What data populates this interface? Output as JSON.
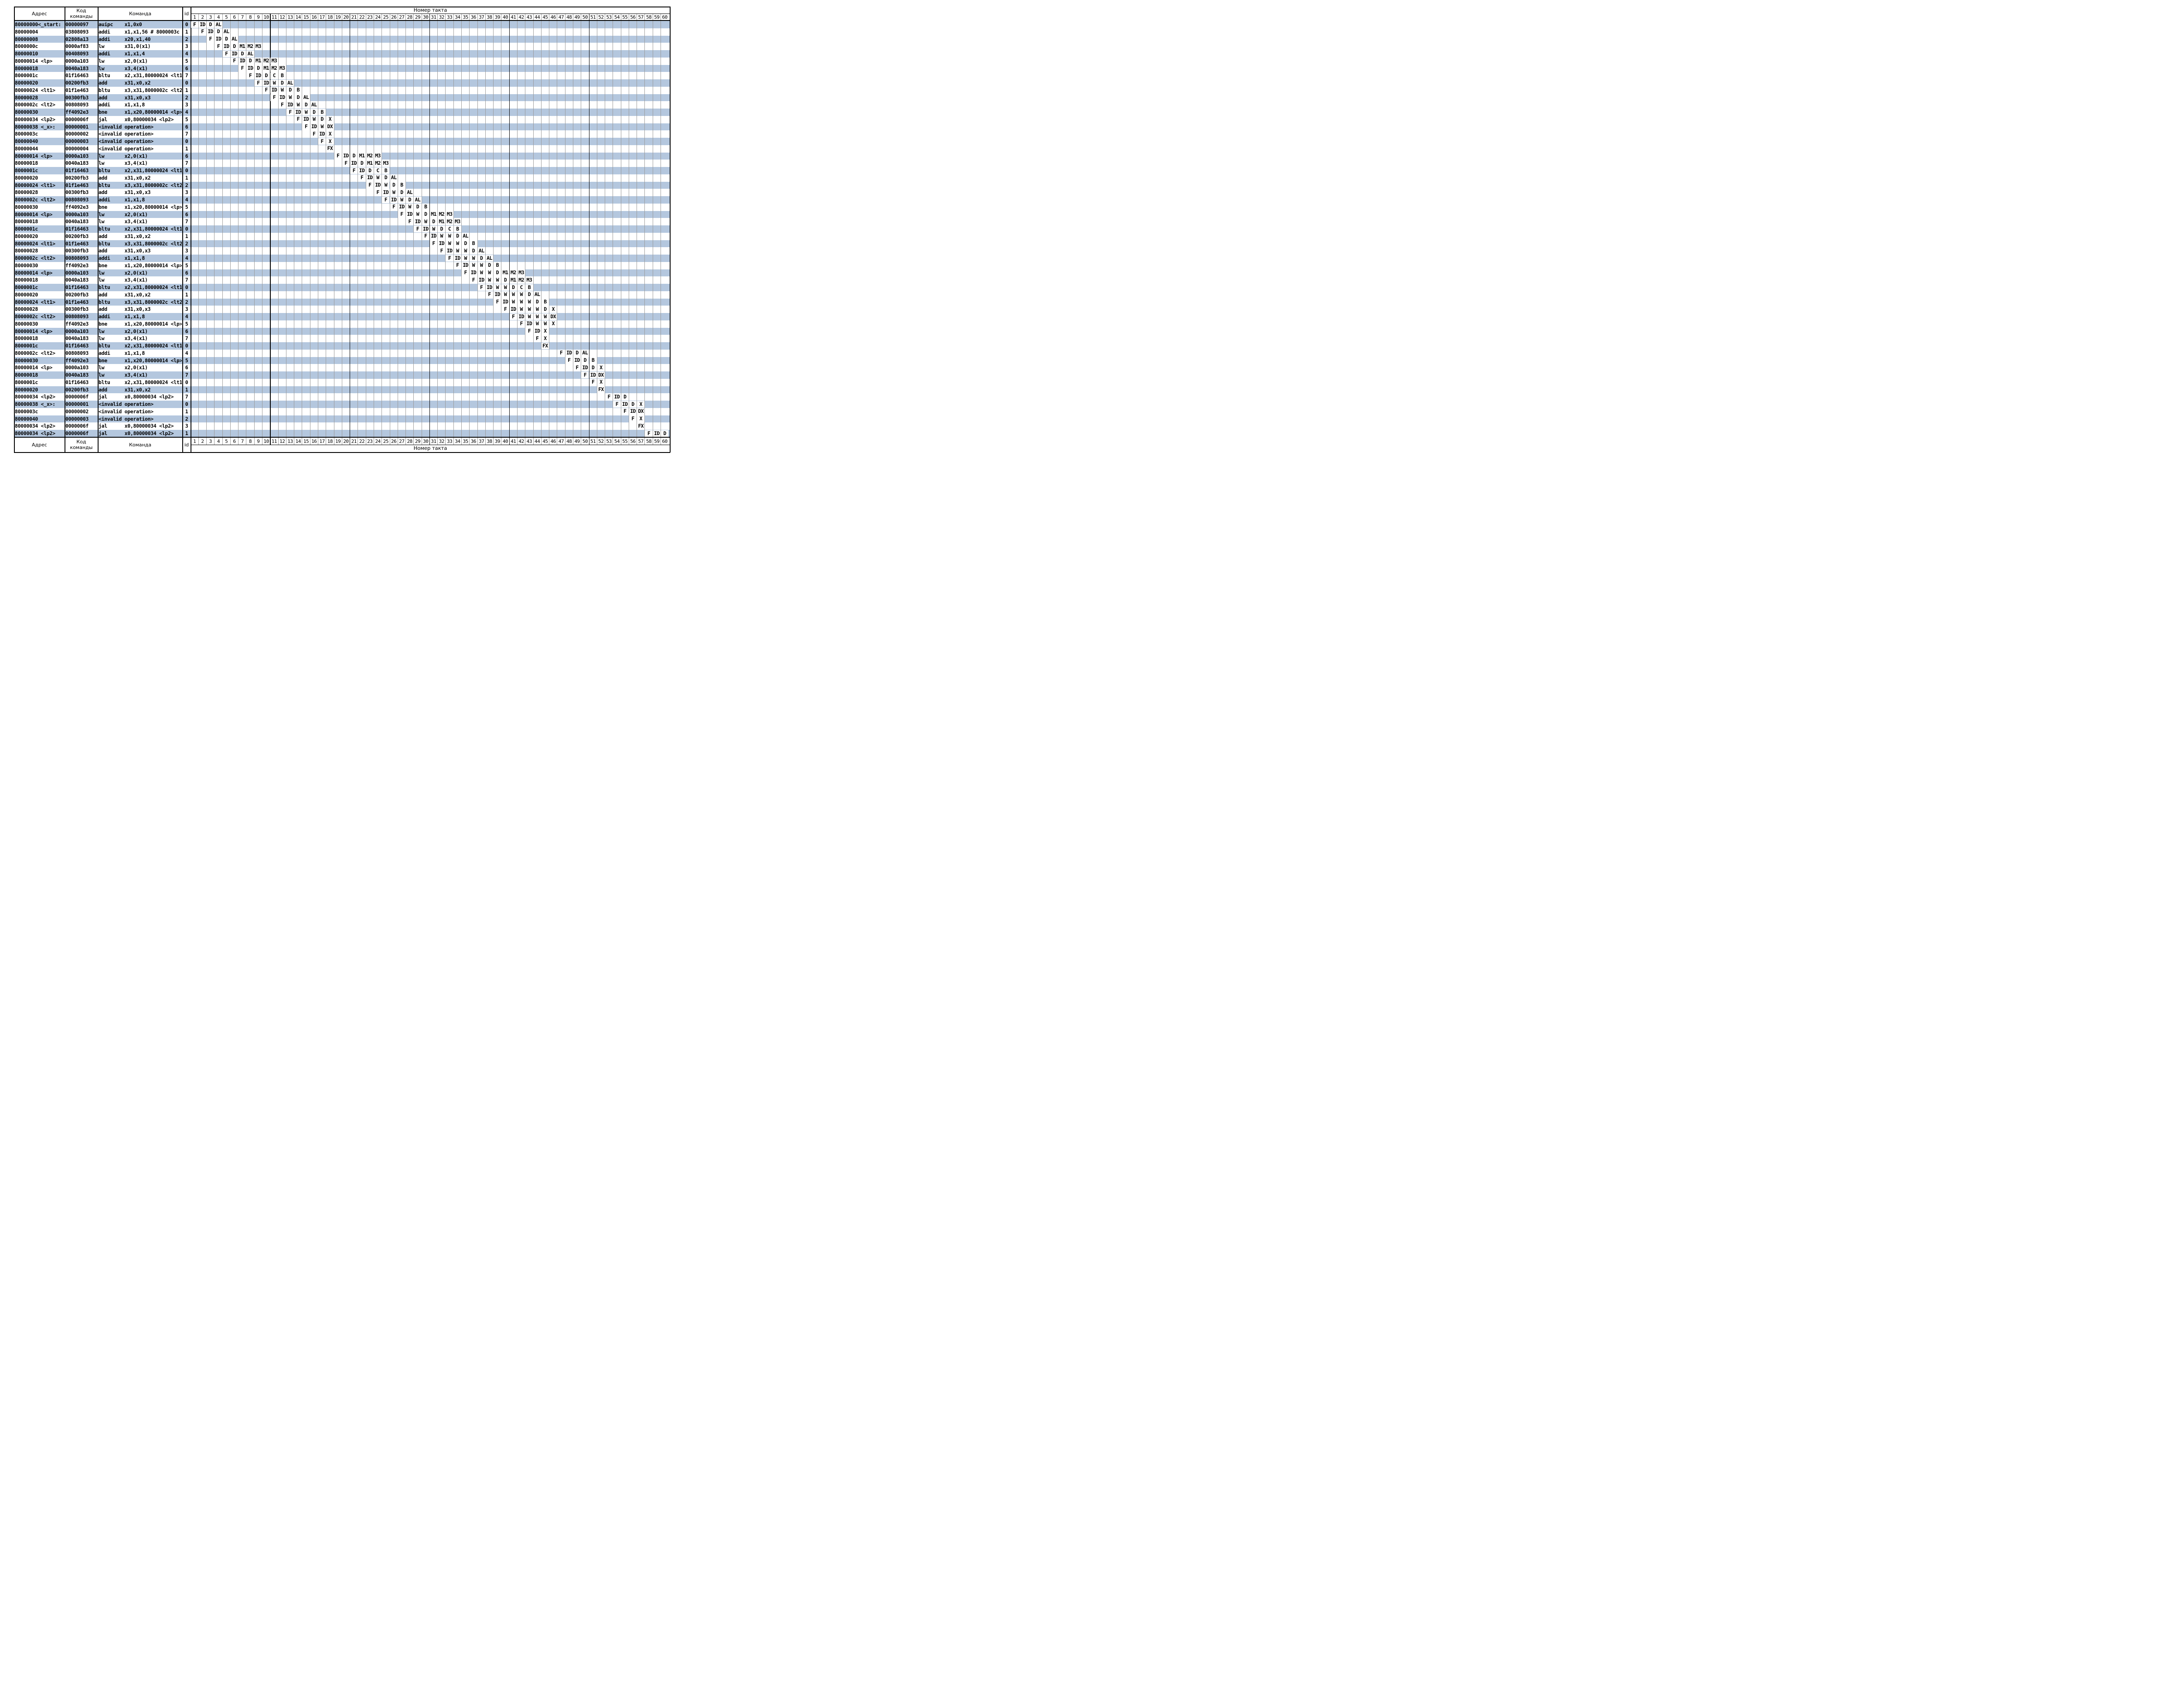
{
  "header": {
    "address": "Адрес",
    "code": "Код команды",
    "command": "Команда",
    "id": "id",
    "clock_title": "Номер такта",
    "clock_count": 60
  },
  "footer": {
    "address": "Адрес",
    "code": "Код команды",
    "command": "Команда",
    "id": "id",
    "clock_title": "Номер такта"
  },
  "colors": {
    "band": "#b4c7de",
    "grid": "#9a9a9a",
    "border": "#000000"
  },
  "rows": [
    {
      "addr": "80000000<_start:",
      "code": "00000097",
      "cmd": "auipc    x1,0x0",
      "id": "0",
      "start": 1,
      "stages": [
        "F",
        "ID",
        "D",
        "AL"
      ]
    },
    {
      "addr": "80000004",
      "code": "03808093",
      "cmd": "addi     x1,x1,56 # 8000003c",
      "id": "1",
      "start": 2,
      "stages": [
        "F",
        "ID",
        "D",
        "AL"
      ]
    },
    {
      "addr": "80000008",
      "code": "02808a13",
      "cmd": "addi     x20,x1,40",
      "id": "2",
      "start": 3,
      "stages": [
        "F",
        "ID",
        "D",
        "AL"
      ]
    },
    {
      "addr": "8000000c",
      "code": "0000af83",
      "cmd": "lw       x31,0(x1)",
      "id": "3",
      "start": 4,
      "stages": [
        "F",
        "ID",
        "D",
        "M1",
        "M2",
        "M3"
      ]
    },
    {
      "addr": "80000010",
      "code": "00408093",
      "cmd": "addi     x1,x1,4",
      "id": "4",
      "start": 5,
      "stages": [
        "F",
        "ID",
        "D",
        "AL"
      ]
    },
    {
      "addr": "80000014 <lp>",
      "code": "0000a103",
      "cmd": "lw       x2,0(x1)",
      "id": "5",
      "start": 6,
      "stages": [
        "F",
        "ID",
        "D",
        "M1",
        "M2",
        "M3"
      ]
    },
    {
      "addr": "80000018",
      "code": "0040a183",
      "cmd": "lw       x3,4(x1)",
      "id": "6",
      "start": 7,
      "stages": [
        "F",
        "ID",
        "D",
        "M1",
        "M2",
        "M3"
      ]
    },
    {
      "addr": "8000001c",
      "code": "01f16463",
      "cmd": "bltu     x2,x31,80000024 <lt1>",
      "id": "7",
      "start": 8,
      "stages": [
        "F",
        "ID",
        "D",
        "C",
        "B"
      ]
    },
    {
      "addr": "80000020",
      "code": "00200fb3",
      "cmd": "add      x31,x0,x2",
      "id": "0",
      "start": 9,
      "stages": [
        "F",
        "ID",
        "W",
        "D",
        "AL"
      ]
    },
    {
      "addr": "80000024 <lt1>",
      "code": "01f1e463",
      "cmd": "bltu     x3,x31,8000002c <lt2>",
      "id": "1",
      "start": 10,
      "stages": [
        "F",
        "ID",
        "W",
        "D",
        "B"
      ]
    },
    {
      "addr": "80000028",
      "code": "00300fb3",
      "cmd": "add      x31,x0,x3",
      "id": "2",
      "start": 11,
      "stages": [
        "F",
        "ID",
        "W",
        "D",
        "AL"
      ]
    },
    {
      "addr": "8000002c <lt2>",
      "code": "00808093",
      "cmd": "addi     x1,x1,8",
      "id": "3",
      "start": 12,
      "stages": [
        "F",
        "ID",
        "W",
        "D",
        "AL"
      ]
    },
    {
      "addr": "80000030",
      "code": "ff4092e3",
      "cmd": "bne      x1,x20,80000014 <lp>",
      "id": "4",
      "start": 13,
      "stages": [
        "F",
        "ID",
        "W",
        "D",
        "B"
      ]
    },
    {
      "addr": "80000034 <lp2>",
      "code": "0000006f",
      "cmd": "jal      x0,80000034 <lp2>",
      "id": "5",
      "start": 14,
      "stages": [
        "F",
        "ID",
        "W",
        "D",
        "X"
      ]
    },
    {
      "addr": "80000038 <_x>:",
      "code": "00000001",
      "cmd": "<invalid operation>",
      "id": "6",
      "start": 15,
      "stages": [
        "F",
        "ID",
        "W",
        "DX"
      ]
    },
    {
      "addr": "8000003c",
      "code": "00000002",
      "cmd": "<invalid operation>",
      "id": "7",
      "start": 16,
      "stages": [
        "F",
        "ID",
        "X"
      ]
    },
    {
      "addr": "80000040",
      "code": "00000003",
      "cmd": "<invalid operation>",
      "id": "0",
      "start": 17,
      "stages": [
        "F",
        "X"
      ]
    },
    {
      "addr": "80000044",
      "code": "00000004",
      "cmd": "<invalid operation>",
      "id": "1",
      "start": 18,
      "stages": [
        "FX"
      ]
    },
    {
      "addr": "80000014 <lp>",
      "code": "0000a103",
      "cmd": "lw       x2,0(x1)",
      "id": "6",
      "start": 19,
      "stages": [
        "F",
        "ID",
        "D",
        "M1",
        "M2",
        "M3"
      ]
    },
    {
      "addr": "80000018",
      "code": "0040a183",
      "cmd": "lw       x3,4(x1)",
      "id": "7",
      "start": 20,
      "stages": [
        "F",
        "ID",
        "D",
        "M1",
        "M2",
        "M3"
      ]
    },
    {
      "addr": "8000001c",
      "code": "01f16463",
      "cmd": "bltu     x2,x31,80000024 <lt1>",
      "id": "0",
      "start": 21,
      "stages": [
        "F",
        "ID",
        "D",
        "C",
        "B"
      ]
    },
    {
      "addr": "80000020",
      "code": "00200fb3",
      "cmd": "add      x31,x0,x2",
      "id": "1",
      "start": 22,
      "stages": [
        "F",
        "ID",
        "W",
        "D",
        "AL"
      ]
    },
    {
      "addr": "80000024 <lt1>",
      "code": "01f1e463",
      "cmd": "bltu     x3,x31,8000002c <lt2>",
      "id": "2",
      "start": 23,
      "stages": [
        "F",
        "ID",
        "W",
        "D",
        "B"
      ]
    },
    {
      "addr": "80000028",
      "code": "00300fb3",
      "cmd": "add      x31,x0,x3",
      "id": "3",
      "start": 24,
      "stages": [
        "F",
        "ID",
        "W",
        "D",
        "AL"
      ]
    },
    {
      "addr": "8000002c <lt2>",
      "code": "00808093",
      "cmd": "addi     x1,x1,8",
      "id": "4",
      "start": 25,
      "stages": [
        "F",
        "ID",
        "W",
        "D",
        "AL"
      ]
    },
    {
      "addr": "80000030",
      "code": "ff4092e3",
      "cmd": "bne      x1,x20,80000014 <lp>",
      "id": "5",
      "start": 26,
      "stages": [
        "F",
        "ID",
        "W",
        "D",
        "B"
      ]
    },
    {
      "addr": "80000014 <lp>",
      "code": "0000a103",
      "cmd": "lw       x2,0(x1)",
      "id": "6",
      "start": 27,
      "stages": [
        "F",
        "ID",
        "W",
        "D",
        "M1",
        "M2",
        "M3"
      ]
    },
    {
      "addr": "80000018",
      "code": "0040a183",
      "cmd": "lw       x3,4(x1)",
      "id": "7",
      "start": 28,
      "stages": [
        "F",
        "ID",
        "W",
        "D",
        "M1",
        "M2",
        "M3"
      ]
    },
    {
      "addr": "8000001c",
      "code": "01f16463",
      "cmd": "bltu     x2,x31,80000024 <lt1>",
      "id": "0",
      "start": 29,
      "stages": [
        "F",
        "ID",
        "W",
        "D",
        "C",
        "B"
      ]
    },
    {
      "addr": "80000020",
      "code": "00200fb3",
      "cmd": "add      x31,x0,x2",
      "id": "1",
      "start": 30,
      "stages": [
        "F",
        "ID",
        "W",
        "W",
        "D",
        "AL"
      ]
    },
    {
      "addr": "80000024 <lt1>",
      "code": "01f1e463",
      "cmd": "bltu     x3,x31,8000002c <lt2>",
      "id": "2",
      "start": 31,
      "stages": [
        "F",
        "ID",
        "W",
        "W",
        "D",
        "B"
      ]
    },
    {
      "addr": "80000028",
      "code": "00300fb3",
      "cmd": "add      x31,x0,x3",
      "id": "3",
      "start": 32,
      "stages": [
        "F",
        "ID",
        "W",
        "W",
        "D",
        "AL"
      ]
    },
    {
      "addr": "8000002c <lt2>",
      "code": "00808093",
      "cmd": "addi     x1,x1,8",
      "id": "4",
      "start": 33,
      "stages": [
        "F",
        "ID",
        "W",
        "W",
        "D",
        "AL"
      ]
    },
    {
      "addr": "80000030",
      "code": "ff4092e3",
      "cmd": "bne      x1,x20,80000014 <lp>",
      "id": "5",
      "start": 34,
      "stages": [
        "F",
        "ID",
        "W",
        "W",
        "D",
        "B"
      ]
    },
    {
      "addr": "80000014 <lp>",
      "code": "0000a103",
      "cmd": "lw       x2,0(x1)",
      "id": "6",
      "start": 35,
      "stages": [
        "F",
        "ID",
        "W",
        "W",
        "D",
        "M1",
        "M2",
        "M3"
      ]
    },
    {
      "addr": "80000018",
      "code": "0040a183",
      "cmd": "lw       x3,4(x1)",
      "id": "7",
      "start": 36,
      "stages": [
        "F",
        "ID",
        "W",
        "W",
        "D",
        "M1",
        "M2",
        "M3"
      ]
    },
    {
      "addr": "8000001c",
      "code": "01f16463",
      "cmd": "bltu     x2,x31,80000024 <lt1>",
      "id": "0",
      "start": 37,
      "stages": [
        "F",
        "ID",
        "W",
        "W",
        "D",
        "C",
        "B"
      ]
    },
    {
      "addr": "80000020",
      "code": "00200fb3",
      "cmd": "add      x31,x0,x2",
      "id": "1",
      "start": 38,
      "stages": [
        "F",
        "ID",
        "W",
        "W",
        "W",
        "D",
        "AL"
      ]
    },
    {
      "addr": "80000024 <lt1>",
      "code": "01f1e463",
      "cmd": "bltu     x3,x31,8000002c <lt2>",
      "id": "2",
      "start": 39,
      "stages": [
        "F",
        "ID",
        "W",
        "W",
        "W",
        "D",
        "B"
      ]
    },
    {
      "addr": "80000028",
      "code": "00300fb3",
      "cmd": "add      x31,x0,x3",
      "id": "3",
      "start": 40,
      "stages": [
        "F",
        "ID",
        "W",
        "W",
        "W",
        "D",
        "X"
      ]
    },
    {
      "addr": "8000002c <lt2>",
      "code": "00808093",
      "cmd": "addi     x1,x1,8",
      "id": "4",
      "start": 41,
      "stages": [
        "F",
        "ID",
        "W",
        "W",
        "W",
        "DX"
      ]
    },
    {
      "addr": "80000030",
      "code": "ff4092e3",
      "cmd": "bne      x1,x20,80000014 <lp>",
      "id": "5",
      "start": 42,
      "stages": [
        "F",
        "ID",
        "W",
        "W",
        "X"
      ]
    },
    {
      "addr": "80000014 <lp>",
      "code": "0000a103",
      "cmd": "lw       x2,0(x1)",
      "id": "6",
      "start": 43,
      "stages": [
        "F",
        "ID",
        "X"
      ]
    },
    {
      "addr": "80000018",
      "code": "0040a183",
      "cmd": "lw       x3,4(x1)",
      "id": "7",
      "start": 44,
      "stages": [
        "F",
        "X"
      ]
    },
    {
      "addr": "8000001c",
      "code": "01f16463",
      "cmd": "bltu     x2,x31,80000024 <lt1>",
      "id": "0",
      "start": 45,
      "stages": [
        "FX"
      ]
    },
    {
      "addr": "8000002c <lt2>",
      "code": "00808093",
      "cmd": "addi     x1,x1,8",
      "id": "4",
      "start": 47,
      "stages": [
        "F",
        "ID",
        "D",
        "AL"
      ]
    },
    {
      "addr": "80000030",
      "code": "ff4092e3",
      "cmd": "bne      x1,x20,80000014 <lp>",
      "id": "5",
      "start": 48,
      "stages": [
        "F",
        "ID",
        "D",
        "B"
      ]
    },
    {
      "addr": "80000014 <lp>",
      "code": "0000a103",
      "cmd": "lw       x2,0(x1)",
      "id": "6",
      "start": 49,
      "stages": [
        "F",
        "ID",
        "D",
        "X"
      ]
    },
    {
      "addr": "80000018",
      "code": "0040a183",
      "cmd": "lw       x3,4(x1)",
      "id": "7",
      "start": 50,
      "stages": [
        "F",
        "ID",
        "DX"
      ]
    },
    {
      "addr": "8000001c",
      "code": "01f16463",
      "cmd": "bltu     x2,x31,80000024 <lt1>",
      "id": "0",
      "start": 51,
      "stages": [
        "F",
        "X"
      ]
    },
    {
      "addr": "80000020",
      "code": "00200fb3",
      "cmd": "add      x31,x0,x2",
      "id": "1",
      "start": 52,
      "stages": [
        "FX"
      ]
    },
    {
      "addr": "80000034 <lp2>",
      "code": "0000006f",
      "cmd": "jal      x0,80000034 <lp2>",
      "id": "7",
      "start": 53,
      "stages": [
        "F",
        "ID",
        "D"
      ]
    },
    {
      "addr": "80000038 <_x>:",
      "code": "00000001",
      "cmd": "<invalid operation>",
      "id": "0",
      "start": 54,
      "stages": [
        "F",
        "ID",
        "D",
        "X"
      ]
    },
    {
      "addr": "8000003c",
      "code": "00000002",
      "cmd": "<invalid operation>",
      "id": "1",
      "start": 55,
      "stages": [
        "F",
        "ID",
        "DX"
      ]
    },
    {
      "addr": "80000040",
      "code": "00000003",
      "cmd": "<invalid operation>",
      "id": "2",
      "start": 56,
      "stages": [
        "F",
        "X"
      ]
    },
    {
      "addr": "80000034 <lp2>",
      "code": "0000006f",
      "cmd": "jal      x0,80000034 <lp2>",
      "id": "3",
      "start": 57,
      "stages": [
        "FX"
      ]
    },
    {
      "addr": "80000034 <lp2>",
      "code": "0000006f",
      "cmd": "jal      x0,80000034 <lp2>",
      "id": "1",
      "start": 58,
      "stages": [
        "F",
        "ID",
        "D"
      ]
    }
  ]
}
